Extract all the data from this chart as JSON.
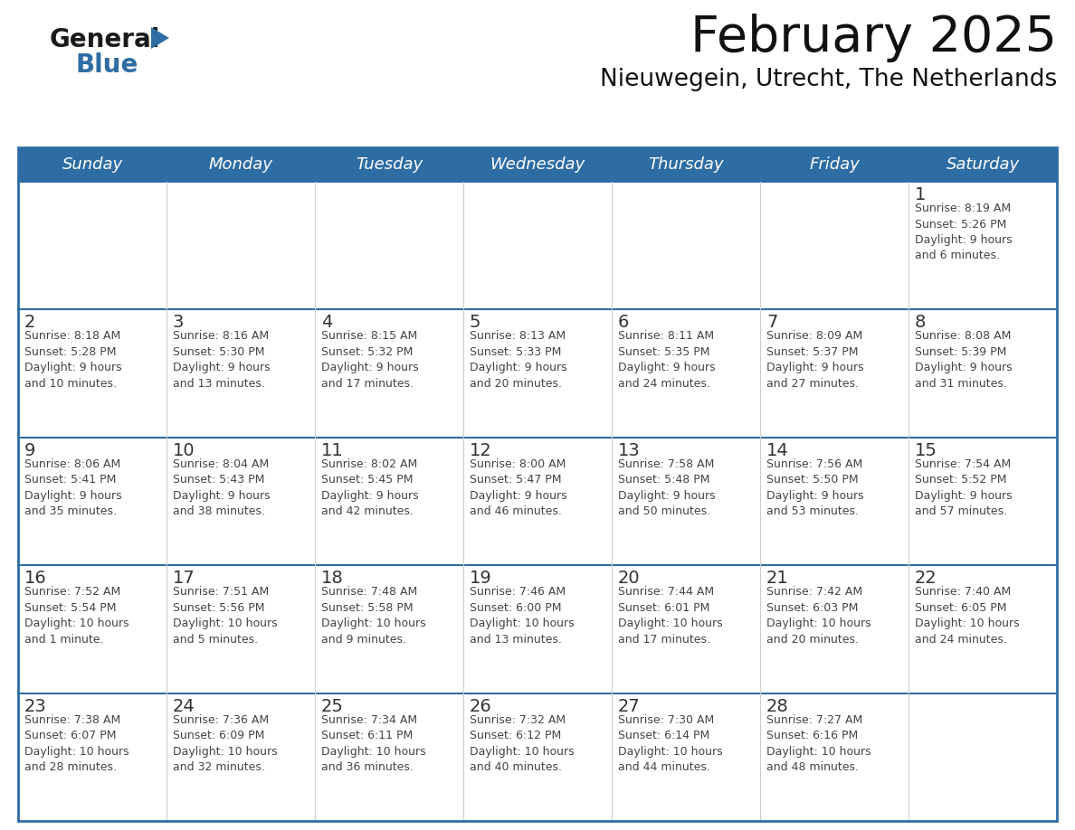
{
  "title": "February 2025",
  "subtitle": "Nieuwegein, Utrecht, The Netherlands",
  "days_of_week": [
    "Sunday",
    "Monday",
    "Tuesday",
    "Wednesday",
    "Thursday",
    "Friday",
    "Saturday"
  ],
  "header_bg": "#2E6DA4",
  "header_text": "#FFFFFF",
  "cell_bg": "#FFFFFF",
  "row_separator_color": "#2E6DA4",
  "col_separator_color": "#CCCCCC",
  "outer_border_color": "#2E6DA4",
  "text_color": "#444444",
  "day_num_color": "#333333",
  "logo_general_color": "#1a1a1a",
  "logo_blue_color": "#2E6DA4",
  "calendar_data": [
    [
      {
        "day": null,
        "info": ""
      },
      {
        "day": null,
        "info": ""
      },
      {
        "day": null,
        "info": ""
      },
      {
        "day": null,
        "info": ""
      },
      {
        "day": null,
        "info": ""
      },
      {
        "day": null,
        "info": ""
      },
      {
        "day": 1,
        "info": "Sunrise: 8:19 AM\nSunset: 5:26 PM\nDaylight: 9 hours\nand 6 minutes."
      }
    ],
    [
      {
        "day": 2,
        "info": "Sunrise: 8:18 AM\nSunset: 5:28 PM\nDaylight: 9 hours\nand 10 minutes."
      },
      {
        "day": 3,
        "info": "Sunrise: 8:16 AM\nSunset: 5:30 PM\nDaylight: 9 hours\nand 13 minutes."
      },
      {
        "day": 4,
        "info": "Sunrise: 8:15 AM\nSunset: 5:32 PM\nDaylight: 9 hours\nand 17 minutes."
      },
      {
        "day": 5,
        "info": "Sunrise: 8:13 AM\nSunset: 5:33 PM\nDaylight: 9 hours\nand 20 minutes."
      },
      {
        "day": 6,
        "info": "Sunrise: 8:11 AM\nSunset: 5:35 PM\nDaylight: 9 hours\nand 24 minutes."
      },
      {
        "day": 7,
        "info": "Sunrise: 8:09 AM\nSunset: 5:37 PM\nDaylight: 9 hours\nand 27 minutes."
      },
      {
        "day": 8,
        "info": "Sunrise: 8:08 AM\nSunset: 5:39 PM\nDaylight: 9 hours\nand 31 minutes."
      }
    ],
    [
      {
        "day": 9,
        "info": "Sunrise: 8:06 AM\nSunset: 5:41 PM\nDaylight: 9 hours\nand 35 minutes."
      },
      {
        "day": 10,
        "info": "Sunrise: 8:04 AM\nSunset: 5:43 PM\nDaylight: 9 hours\nand 38 minutes."
      },
      {
        "day": 11,
        "info": "Sunrise: 8:02 AM\nSunset: 5:45 PM\nDaylight: 9 hours\nand 42 minutes."
      },
      {
        "day": 12,
        "info": "Sunrise: 8:00 AM\nSunset: 5:47 PM\nDaylight: 9 hours\nand 46 minutes."
      },
      {
        "day": 13,
        "info": "Sunrise: 7:58 AM\nSunset: 5:48 PM\nDaylight: 9 hours\nand 50 minutes."
      },
      {
        "day": 14,
        "info": "Sunrise: 7:56 AM\nSunset: 5:50 PM\nDaylight: 9 hours\nand 53 minutes."
      },
      {
        "day": 15,
        "info": "Sunrise: 7:54 AM\nSunset: 5:52 PM\nDaylight: 9 hours\nand 57 minutes."
      }
    ],
    [
      {
        "day": 16,
        "info": "Sunrise: 7:52 AM\nSunset: 5:54 PM\nDaylight: 10 hours\nand 1 minute."
      },
      {
        "day": 17,
        "info": "Sunrise: 7:51 AM\nSunset: 5:56 PM\nDaylight: 10 hours\nand 5 minutes."
      },
      {
        "day": 18,
        "info": "Sunrise: 7:48 AM\nSunset: 5:58 PM\nDaylight: 10 hours\nand 9 minutes."
      },
      {
        "day": 19,
        "info": "Sunrise: 7:46 AM\nSunset: 6:00 PM\nDaylight: 10 hours\nand 13 minutes."
      },
      {
        "day": 20,
        "info": "Sunrise: 7:44 AM\nSunset: 6:01 PM\nDaylight: 10 hours\nand 17 minutes."
      },
      {
        "day": 21,
        "info": "Sunrise: 7:42 AM\nSunset: 6:03 PM\nDaylight: 10 hours\nand 20 minutes."
      },
      {
        "day": 22,
        "info": "Sunrise: 7:40 AM\nSunset: 6:05 PM\nDaylight: 10 hours\nand 24 minutes."
      }
    ],
    [
      {
        "day": 23,
        "info": "Sunrise: 7:38 AM\nSunset: 6:07 PM\nDaylight: 10 hours\nand 28 minutes."
      },
      {
        "day": 24,
        "info": "Sunrise: 7:36 AM\nSunset: 6:09 PM\nDaylight: 10 hours\nand 32 minutes."
      },
      {
        "day": 25,
        "info": "Sunrise: 7:34 AM\nSunset: 6:11 PM\nDaylight: 10 hours\nand 36 minutes."
      },
      {
        "day": 26,
        "info": "Sunrise: 7:32 AM\nSunset: 6:12 PM\nDaylight: 10 hours\nand 40 minutes."
      },
      {
        "day": 27,
        "info": "Sunrise: 7:30 AM\nSunset: 6:14 PM\nDaylight: 10 hours\nand 44 minutes."
      },
      {
        "day": 28,
        "info": "Sunrise: 7:27 AM\nSunset: 6:16 PM\nDaylight: 10 hours\nand 48 minutes."
      },
      {
        "day": null,
        "info": ""
      }
    ]
  ]
}
